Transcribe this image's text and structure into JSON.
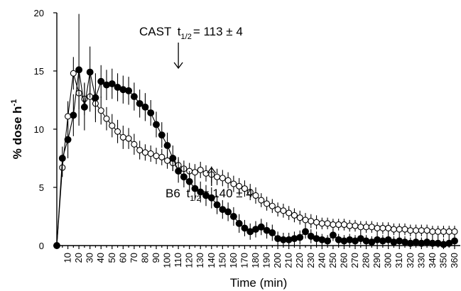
{
  "chart_data": {
    "type": "line",
    "title": "",
    "xlabel": "Time (min)",
    "ylabel_main": "% dose h",
    "ylabel_sup": "-1",
    "xlim": [
      0,
      360
    ],
    "ylim": [
      0,
      20
    ],
    "yticks": [
      0,
      5,
      10,
      15,
      20
    ],
    "xticks": [
      10,
      20,
      30,
      40,
      50,
      60,
      70,
      80,
      90,
      100,
      110,
      120,
      130,
      140,
      150,
      160,
      170,
      180,
      190,
      200,
      210,
      220,
      230,
      240,
      250,
      260,
      270,
      280,
      290,
      300,
      310,
      320,
      330,
      340,
      350,
      360
    ],
    "series": [
      {
        "marker": "open",
        "x": [
          0,
          5,
          10,
          15,
          20,
          25,
          30,
          35,
          40,
          45,
          50,
          55,
          60,
          65,
          70,
          75,
          80,
          85,
          90,
          95,
          100,
          105,
          110,
          115,
          120,
          125,
          130,
          135,
          140,
          145,
          150,
          155,
          160,
          165,
          170,
          175,
          180,
          185,
          190,
          195,
          200,
          205,
          210,
          215,
          220,
          225,
          230,
          235,
          240,
          245,
          250,
          255,
          260,
          265,
          270,
          275,
          280,
          285,
          290,
          295,
          300,
          305,
          310,
          315,
          320,
          325,
          330,
          335,
          340,
          345,
          350,
          355,
          360
        ],
        "y": [
          0,
          6.7,
          11.1,
          14.8,
          13.1,
          12.6,
          12.8,
          12.2,
          11.6,
          10.9,
          10.3,
          9.8,
          9.3,
          9.2,
          8.7,
          8.2,
          8.0,
          7.9,
          7.7,
          7.6,
          7.3,
          7.1,
          6.9,
          6.6,
          6.4,
          6.3,
          6.5,
          6.2,
          6.1,
          5.9,
          5.8,
          5.6,
          5.3,
          5.1,
          4.9,
          4.6,
          4.3,
          3.9,
          3.6,
          3.4,
          3.1,
          3.0,
          2.8,
          2.6,
          2.4,
          2.2,
          2.1,
          2.0,
          1.9,
          1.9,
          1.8,
          1.8,
          1.8,
          1.7,
          1.7,
          1.6,
          1.6,
          1.6,
          1.5,
          1.5,
          1.5,
          1.4,
          1.4,
          1.4,
          1.3,
          1.3,
          1.3,
          1.3,
          1.2,
          1.2,
          1.2,
          1.2,
          1.2
        ],
        "err": [
          0,
          0.8,
          1.3,
          1.4,
          1.4,
          1.4,
          1.3,
          1.3,
          1.2,
          1.0,
          1.0,
          1.0,
          1.0,
          0.9,
          0.9,
          0.8,
          0.7,
          0.7,
          0.7,
          0.7,
          0.7,
          0.7,
          0.7,
          0.7,
          0.7,
          0.7,
          0.7,
          0.7,
          0.7,
          0.7,
          0.7,
          0.7,
          0.7,
          0.7,
          0.7,
          0.7,
          0.7,
          0.6,
          0.6,
          0.6,
          0.6,
          0.6,
          0.6,
          0.6,
          0.6,
          0.6,
          0.6,
          0.6,
          0.5,
          0.5,
          0.5,
          0.5,
          0.5,
          0.5,
          0.5,
          0.5,
          0.5,
          0.5,
          0.5,
          0.5,
          0.5,
          0.5,
          0.5,
          0.5,
          0.5,
          0.5,
          0.5,
          0.5,
          0.5,
          0.5,
          0.5,
          0.5,
          0.5
        ]
      },
      {
        "marker": "filled",
        "x": [
          0,
          5,
          10,
          15,
          20,
          25,
          30,
          35,
          40,
          45,
          50,
          55,
          60,
          65,
          70,
          75,
          80,
          85,
          90,
          95,
          100,
          105,
          110,
          115,
          120,
          125,
          130,
          135,
          140,
          145,
          150,
          155,
          160,
          165,
          170,
          175,
          180,
          185,
          190,
          195,
          200,
          205,
          210,
          215,
          220,
          225,
          230,
          235,
          240,
          245,
          250,
          255,
          260,
          265,
          270,
          275,
          280,
          285,
          290,
          295,
          300,
          305,
          310,
          315,
          320,
          325,
          330,
          335,
          340,
          345,
          350,
          355,
          360
        ],
        "y": [
          0,
          7.5,
          9.1,
          11.2,
          15.1,
          11.9,
          14.9,
          12.7,
          14.1,
          13.8,
          13.9,
          13.6,
          13.4,
          13.3,
          12.8,
          12.2,
          11.9,
          11.4,
          10.4,
          9.5,
          8.6,
          7.5,
          6.4,
          5.9,
          5.5,
          4.9,
          4.6,
          4.3,
          4.1,
          3.5,
          3.1,
          2.9,
          2.5,
          1.9,
          1.5,
          1.2,
          1.4,
          1.6,
          1.3,
          1.1,
          0.6,
          0.5,
          0.5,
          0.6,
          0.7,
          1.2,
          0.8,
          0.6,
          0.5,
          0.4,
          0.9,
          0.5,
          0.4,
          0.5,
          0.4,
          0.6,
          0.4,
          0.3,
          0.5,
          0.4,
          0.5,
          0.3,
          0.4,
          0.3,
          0.2,
          0.3,
          0.2,
          0.3,
          0.2,
          0.2,
          0.1,
          0.2,
          0.4
        ],
        "err": [
          0,
          1.0,
          1.6,
          1.8,
          4.8,
          2.0,
          2.2,
          2.1,
          1.4,
          1.3,
          1.3,
          1.2,
          1.2,
          1.2,
          1.2,
          1.2,
          1.2,
          1.1,
          1.1,
          1.1,
          1.1,
          1.1,
          1.0,
          0.9,
          0.9,
          0.9,
          0.9,
          0.9,
          0.9,
          0.8,
          0.8,
          0.8,
          0.8,
          0.8,
          0.7,
          0.7,
          0.7,
          0.7,
          0.7,
          0.7,
          0.6,
          0.6,
          0.6,
          0.6,
          0.6,
          0.6,
          0.6,
          0.6,
          0.5,
          0.5,
          0.5,
          0.5,
          0.5,
          0.5,
          0.5,
          0.5,
          0.5,
          0.5,
          0.5,
          0.5,
          0.5,
          0.5,
          0.5,
          0.5,
          0.5,
          0.5,
          0.5,
          0.5,
          0.5,
          0.5,
          0.5,
          0.5,
          0.5
        ]
      }
    ],
    "annotations": [
      {
        "label": "CAST",
        "sub": "1/2",
        "value": "= 113 ± 4",
        "arrow_x": 110,
        "direction": "down"
      },
      {
        "label": "B6",
        "sub": "1/2",
        "value": "= 140 ± 4",
        "arrow_x": 140,
        "direction": "up"
      }
    ],
    "grid": false
  }
}
